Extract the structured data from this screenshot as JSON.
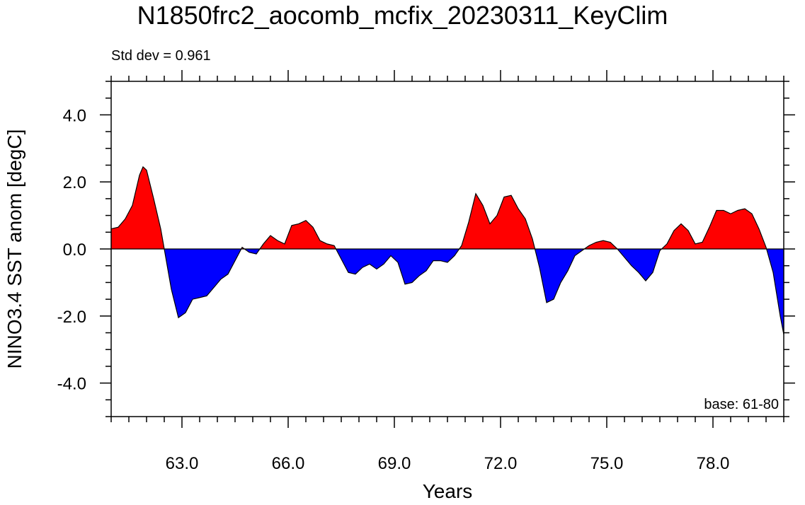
{
  "chart_data": {
    "type": "area",
    "title": "N1850frc2_aocomb_mcfix_20230311_KeyClim",
    "annotation_left": "Std dev = 0.961",
    "annotation_right": "base: 61-80",
    "xlabel": "Years",
    "ylabel": "NINO3.4 SST anom [degC]",
    "xlim": [
      61,
      80
    ],
    "ylim": [
      -5,
      5
    ],
    "xticks": [
      63,
      66,
      69,
      72,
      75,
      78
    ],
    "xtick_labels": [
      "63.0",
      "66.0",
      "69.0",
      "72.0",
      "75.0",
      "78.0"
    ],
    "yticks": [
      -4,
      -2,
      0,
      2,
      4
    ],
    "ytick_labels": [
      "-4.0",
      "-2.0",
      "0.0",
      "2.0",
      "4.0"
    ],
    "positive_color": "#ff0000",
    "negative_color": "#0000ff",
    "grid": false,
    "x": [
      61.0,
      61.2,
      61.4,
      61.6,
      61.8,
      61.9,
      62.0,
      62.2,
      62.4,
      62.5,
      62.7,
      62.9,
      63.1,
      63.3,
      63.5,
      63.7,
      63.9,
      64.1,
      64.3,
      64.5,
      64.7,
      64.9,
      65.1,
      65.3,
      65.5,
      65.7,
      65.9,
      66.1,
      66.3,
      66.5,
      66.7,
      66.9,
      67.1,
      67.3,
      67.5,
      67.7,
      67.9,
      68.1,
      68.3,
      68.5,
      68.7,
      68.9,
      69.1,
      69.3,
      69.5,
      69.7,
      69.9,
      70.1,
      70.3,
      70.5,
      70.7,
      70.9,
      71.1,
      71.3,
      71.5,
      71.7,
      71.9,
      72.1,
      72.3,
      72.5,
      72.7,
      72.9,
      73.1,
      73.3,
      73.5,
      73.7,
      73.9,
      74.1,
      74.3,
      74.5,
      74.7,
      74.9,
      75.1,
      75.3,
      75.5,
      75.7,
      75.9,
      76.1,
      76.3,
      76.5,
      76.7,
      76.9,
      77.1,
      77.3,
      77.5,
      77.7,
      77.9,
      78.1,
      78.3,
      78.5,
      78.7,
      78.9,
      79.1,
      79.3,
      79.5,
      79.7,
      79.9,
      80.0
    ],
    "values": [
      0.6,
      0.65,
      0.9,
      1.3,
      2.2,
      2.45,
      2.35,
      1.5,
      0.6,
      0.0,
      -1.2,
      -2.05,
      -1.9,
      -1.5,
      -1.45,
      -1.4,
      -1.15,
      -0.9,
      -0.75,
      -0.35,
      0.05,
      -0.1,
      -0.15,
      0.15,
      0.4,
      0.25,
      0.15,
      0.7,
      0.75,
      0.85,
      0.65,
      0.25,
      0.15,
      0.1,
      -0.3,
      -0.7,
      -0.75,
      -0.55,
      -0.45,
      -0.6,
      -0.45,
      -0.2,
      -0.4,
      -1.05,
      -1.0,
      -0.8,
      -0.65,
      -0.35,
      -0.35,
      -0.4,
      -0.2,
      0.1,
      0.8,
      1.65,
      1.3,
      0.75,
      1.0,
      1.55,
      1.6,
      1.2,
      0.9,
      0.3,
      -0.55,
      -1.6,
      -1.5,
      -1.0,
      -0.65,
      -0.2,
      -0.05,
      0.1,
      0.2,
      0.25,
      0.2,
      0.0,
      -0.25,
      -0.5,
      -0.7,
      -0.95,
      -0.7,
      -0.05,
      0.15,
      0.55,
      0.75,
      0.55,
      0.15,
      0.2,
      0.65,
      1.15,
      1.15,
      1.05,
      1.15,
      1.2,
      1.05,
      0.6,
      0.05,
      -0.7,
      -2.0,
      -2.55
    ]
  }
}
